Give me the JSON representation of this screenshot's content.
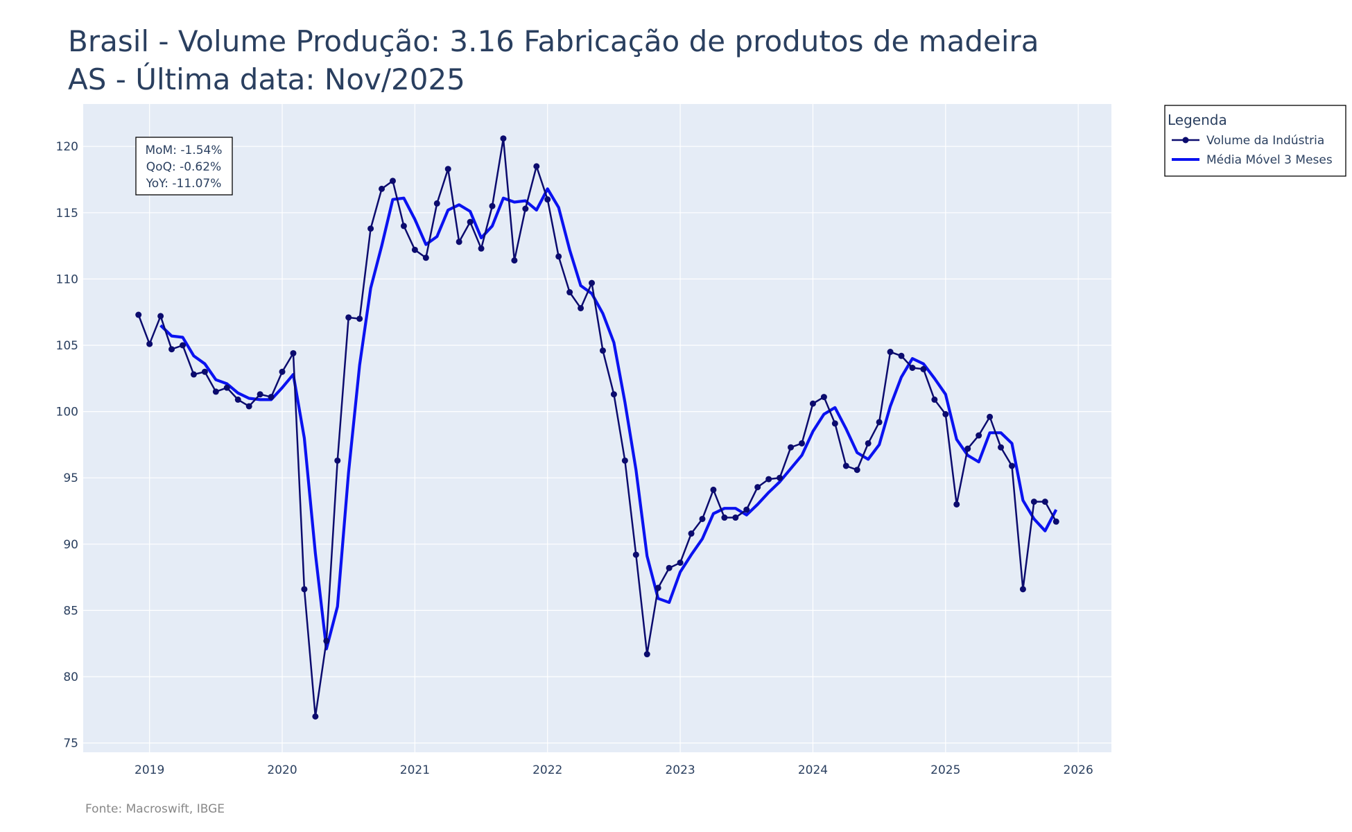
{
  "chart_data": {
    "type": "line",
    "title_line1": "Brasil - Volume Produção: 3.16 Fabricação de produtos de madeira",
    "title_line2": "AS - Última data: Nov/2025",
    "xlabel": "",
    "ylabel": "",
    "x_start": "2018-12",
    "xlim": [
      2018.5,
      2026.25
    ],
    "ylim": [
      74.3,
      123.2
    ],
    "x_ticks": [
      2019,
      2020,
      2021,
      2022,
      2023,
      2024,
      2025,
      2026
    ],
    "x_tick_labels": [
      "2019",
      "2020",
      "2021",
      "2022",
      "2023",
      "2024",
      "2025",
      "2026"
    ],
    "y_ticks": [
      75,
      80,
      85,
      90,
      95,
      100,
      105,
      110,
      115,
      120
    ],
    "y_tick_labels": [
      "75",
      "80",
      "85",
      "90",
      "95",
      "100",
      "105",
      "110",
      "115",
      "120"
    ],
    "grid": true,
    "legend": {
      "title": "Legenda",
      "position": "right-top",
      "entries": [
        "Volume da Indústria",
        "Média Móvel 3 Meses"
      ]
    },
    "series": [
      {
        "name": "Volume da Indústria",
        "color": "#0b0b6e",
        "mode": "lines+markers",
        "values": [
          107.3,
          105.1,
          107.2,
          104.7,
          105.0,
          102.8,
          103.0,
          101.5,
          101.8,
          100.9,
          100.4,
          101.3,
          101.1,
          103.0,
          104.4,
          86.6,
          77.0,
          82.7,
          96.3,
          107.1,
          107.0,
          113.8,
          116.8,
          117.4,
          114.0,
          112.2,
          111.6,
          115.7,
          118.3,
          112.8,
          114.3,
          112.3,
          115.5,
          120.6,
          111.4,
          115.3,
          118.5,
          116.0,
          111.7,
          109.0,
          107.8,
          109.7,
          104.6,
          101.3,
          96.3,
          89.2,
          81.7,
          86.7,
          88.2,
          88.6,
          90.8,
          91.9,
          94.1,
          92.0,
          92.0,
          92.6,
          94.3,
          94.9,
          95.0,
          97.3,
          97.6,
          100.6,
          101.1,
          99.1,
          95.9,
          95.6,
          97.6,
          99.2,
          104.5,
          104.2,
          103.3,
          103.2,
          100.9,
          99.8,
          93.0,
          97.2,
          98.2,
          99.6,
          97.3,
          95.9,
          86.6,
          93.2,
          93.2,
          91.7
        ]
      },
      {
        "name": "Média Móvel 3 Meses",
        "color": "#0a12f0",
        "mode": "lines",
        "values": [
          null,
          null,
          106.5,
          105.7,
          105.6,
          104.2,
          103.6,
          102.4,
          102.1,
          101.4,
          101.0,
          100.9,
          100.9,
          101.8,
          102.8,
          98.0,
          89.3,
          82.1,
          85.3,
          95.4,
          103.5,
          109.3,
          112.5,
          116.0,
          116.1,
          114.5,
          112.6,
          113.2,
          115.2,
          115.6,
          115.1,
          113.1,
          114.0,
          116.1,
          115.8,
          115.9,
          115.2,
          116.8,
          115.4,
          112.2,
          109.5,
          108.9,
          107.4,
          105.2,
          100.7,
          95.6,
          89.1,
          85.9,
          85.6,
          87.9,
          89.2,
          90.4,
          92.3,
          92.7,
          92.7,
          92.2,
          93.0,
          93.9,
          94.7,
          95.7,
          96.7,
          98.5,
          99.8,
          100.3,
          98.7,
          96.9,
          96.4,
          97.5,
          100.4,
          102.6,
          104.0,
          103.6,
          102.5,
          101.3,
          97.9,
          96.7,
          96.2,
          98.4,
          98.4,
          97.6,
          93.3,
          91.9,
          91.0,
          92.6
        ]
      }
    ]
  },
  "stats_box": {
    "mom": "MoM: -1.54%",
    "qoq": "QoQ: -0.62%",
    "yoy": "YoY: -11.07%"
  },
  "source": "Fonte: Macroswift, IBGE",
  "colors": {
    "plot_bg": "#e5ecf6",
    "grid": "#ffffff",
    "text": "#2a3f5f"
  }
}
